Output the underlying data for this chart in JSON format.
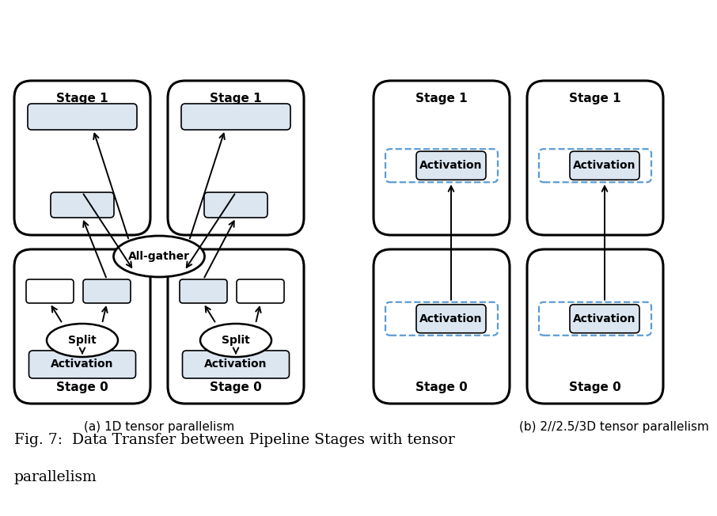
{
  "fig_width": 9.06,
  "fig_height": 6.52,
  "bg_color": "#ffffff",
  "box_fill": "#dce6f1",
  "box_edge": "#000000",
  "dashed_color": "#5b9bd5",
  "caption_a": "(a) 1D tensor parallelism",
  "caption_b": "(b) 2//2.5/3D tensor parallelism",
  "fig_caption_line1": "Fig. 7:  Data Transfer between Pipeline Stages with tensor",
  "fig_caption_line2": "parallelism",
  "stage1_label": "Stage 1",
  "stage0_label": "Stage 0",
  "allgather_label": "All-gather",
  "split_label": "Split",
  "activation_label": "Activation"
}
